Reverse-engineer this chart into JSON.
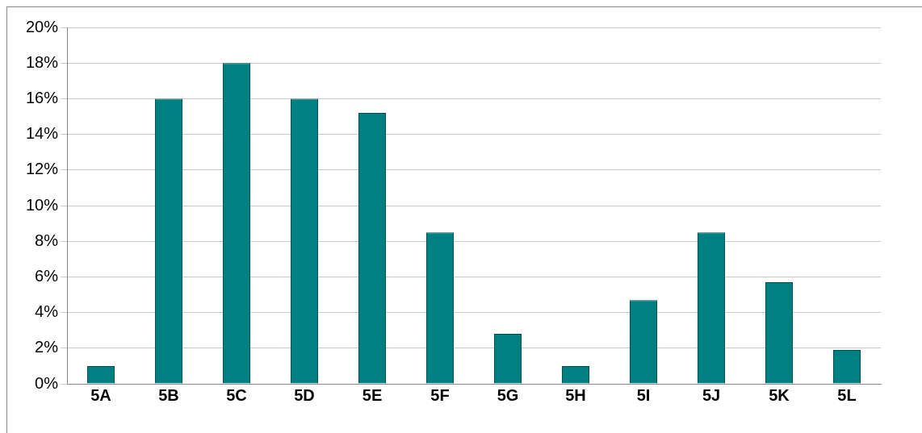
{
  "chart_data": {
    "type": "bar",
    "categories": [
      "5A",
      "5B",
      "5C",
      "5D",
      "5E",
      "5F",
      "5G",
      "5H",
      "5I",
      "5J",
      "5K",
      "5L"
    ],
    "values": [
      1,
      16,
      18,
      16,
      15.2,
      8.5,
      2.8,
      1,
      4.7,
      8.5,
      5.7,
      1.9
    ],
    "color": "#008080",
    "ylim": [
      0,
      20
    ],
    "yticks": [
      {
        "value": 0,
        "label": "0%"
      },
      {
        "value": 2,
        "label": "2%"
      },
      {
        "value": 4,
        "label": "4%"
      },
      {
        "value": 6,
        "label": "6%"
      },
      {
        "value": 8,
        "label": "8%"
      },
      {
        "value": 10,
        "label": "10%"
      },
      {
        "value": 12,
        "label": "12%"
      },
      {
        "value": 14,
        "label": "14%"
      },
      {
        "value": 16,
        "label": "16%"
      },
      {
        "value": 18,
        "label": "18%"
      },
      {
        "value": 20,
        "label": "20%"
      }
    ],
    "grid": "y",
    "legend": false
  }
}
